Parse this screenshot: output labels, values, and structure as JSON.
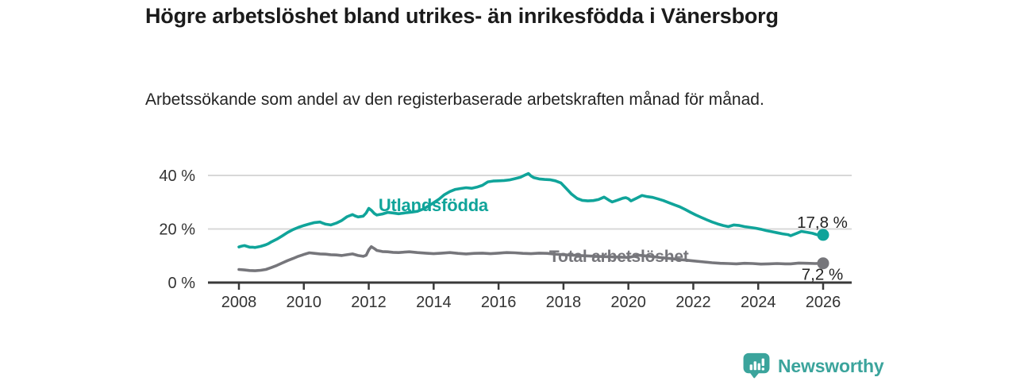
{
  "header": {
    "title": "Högre arbetslöshet bland utrikes- än inrikesfödda i Vänersborg",
    "subtitle": "Arbetssökande som andel av den registerbaserade arbetskraften månad för månad."
  },
  "footer": {
    "brand": "Newsworthy",
    "logo_icon": "bar-chart-speech-bubble-icon"
  },
  "colors": {
    "accent_teal": "#10a49a",
    "neutral_gray": "#76767b",
    "axis": "#3a3a3a",
    "grid": "#d8d8d8",
    "tick_text": "#333333",
    "value_text": "#222222",
    "brand": "#3ba49c"
  },
  "chart_data": {
    "type": "line",
    "title": "Högre arbetslöshet bland utrikes- än inrikesfödda i Vänersborg",
    "subtitle": "Arbetssökande som andel av den registerbaserade arbetskraften månad för månad.",
    "unit": "%",
    "grid": "horizontal",
    "legend_position": "inline-labels",
    "xlim": [
      2007.05,
      2026.9
    ],
    "ylim": [
      0,
      44
    ],
    "x_ticks": [
      {
        "value": 2008,
        "label": "2008"
      },
      {
        "value": 2010,
        "label": "2010"
      },
      {
        "value": 2012,
        "label": "2012"
      },
      {
        "value": 2014,
        "label": "2014"
      },
      {
        "value": 2016,
        "label": "2016"
      },
      {
        "value": 2018,
        "label": "2018"
      },
      {
        "value": 2020,
        "label": "2020"
      },
      {
        "value": 2022,
        "label": "2022"
      },
      {
        "value": 2024,
        "label": "2024"
      },
      {
        "value": 2026,
        "label": "2026"
      }
    ],
    "y_ticks": [
      {
        "value": 0,
        "label": "0 %"
      },
      {
        "value": 20,
        "label": "20 %"
      },
      {
        "value": 40,
        "label": "40 %"
      }
    ],
    "series": [
      {
        "id": "utlandsfodda",
        "name": "Utlandsfödda",
        "color": "#10a49a",
        "end_value_label": "17,8 %",
        "end_value": 17.8,
        "label_pos": {
          "x": 2012.3,
          "y": 26.67
        },
        "points": [
          [
            2008.0,
            13.3
          ],
          [
            2008.08,
            13.6
          ],
          [
            2008.17,
            13.8
          ],
          [
            2008.25,
            13.5
          ],
          [
            2008.33,
            13.2
          ],
          [
            2008.42,
            13.2
          ],
          [
            2008.5,
            13.1
          ],
          [
            2008.58,
            13.3
          ],
          [
            2008.67,
            13.5
          ],
          [
            2008.75,
            13.8
          ],
          [
            2008.83,
            14.1
          ],
          [
            2008.92,
            14.6
          ],
          [
            2009.0,
            15.2
          ],
          [
            2009.17,
            16.2
          ],
          [
            2009.33,
            17.4
          ],
          [
            2009.5,
            18.7
          ],
          [
            2009.67,
            19.8
          ],
          [
            2009.83,
            20.6
          ],
          [
            2010.0,
            21.3
          ],
          [
            2010.17,
            21.9
          ],
          [
            2010.33,
            22.4
          ],
          [
            2010.5,
            22.6
          ],
          [
            2010.58,
            22.2
          ],
          [
            2010.67,
            21.8
          ],
          [
            2010.83,
            21.5
          ],
          [
            2011.0,
            22.2
          ],
          [
            2011.17,
            23.2
          ],
          [
            2011.33,
            24.6
          ],
          [
            2011.5,
            25.4
          ],
          [
            2011.58,
            24.9
          ],
          [
            2011.67,
            24.5
          ],
          [
            2011.83,
            24.8
          ],
          [
            2011.92,
            26.0
          ],
          [
            2012.0,
            27.7
          ],
          [
            2012.08,
            27.0
          ],
          [
            2012.17,
            25.8
          ],
          [
            2012.25,
            25.2
          ],
          [
            2012.42,
            25.6
          ],
          [
            2012.58,
            26.2
          ],
          [
            2012.75,
            26.0
          ],
          [
            2012.92,
            25.7
          ],
          [
            2013.0,
            25.8
          ],
          [
            2013.17,
            26.1
          ],
          [
            2013.33,
            26.3
          ],
          [
            2013.5,
            26.6
          ],
          [
            2013.67,
            27.4
          ],
          [
            2013.83,
            28.5
          ],
          [
            2014.0,
            29.8
          ],
          [
            2014.17,
            31.2
          ],
          [
            2014.33,
            32.8
          ],
          [
            2014.5,
            34.0
          ],
          [
            2014.67,
            34.8
          ],
          [
            2014.83,
            35.1
          ],
          [
            2015.0,
            35.4
          ],
          [
            2015.17,
            35.2
          ],
          [
            2015.33,
            35.6
          ],
          [
            2015.5,
            36.3
          ],
          [
            2015.67,
            37.6
          ],
          [
            2015.83,
            37.9
          ],
          [
            2016.0,
            38.0
          ],
          [
            2016.17,
            38.1
          ],
          [
            2016.33,
            38.3
          ],
          [
            2016.5,
            38.8
          ],
          [
            2016.67,
            39.3
          ],
          [
            2016.83,
            40.2
          ],
          [
            2016.92,
            40.7
          ],
          [
            2017.0,
            39.8
          ],
          [
            2017.08,
            39.2
          ],
          [
            2017.25,
            38.7
          ],
          [
            2017.42,
            38.5
          ],
          [
            2017.58,
            38.4
          ],
          [
            2017.75,
            38.0
          ],
          [
            2017.92,
            37.2
          ],
          [
            2018.08,
            35.2
          ],
          [
            2018.25,
            33.0
          ],
          [
            2018.42,
            31.4
          ],
          [
            2018.58,
            30.7
          ],
          [
            2018.75,
            30.5
          ],
          [
            2018.92,
            30.6
          ],
          [
            2019.08,
            31.0
          ],
          [
            2019.25,
            31.9
          ],
          [
            2019.42,
            30.6
          ],
          [
            2019.5,
            30.1
          ],
          [
            2019.67,
            30.8
          ],
          [
            2019.83,
            31.5
          ],
          [
            2019.92,
            31.7
          ],
          [
            2020.0,
            31.3
          ],
          [
            2020.08,
            30.5
          ],
          [
            2020.25,
            31.5
          ],
          [
            2020.42,
            32.5
          ],
          [
            2020.58,
            32.1
          ],
          [
            2020.75,
            31.8
          ],
          [
            2020.92,
            31.2
          ],
          [
            2021.08,
            30.6
          ],
          [
            2021.25,
            29.8
          ],
          [
            2021.42,
            29.0
          ],
          [
            2021.58,
            28.3
          ],
          [
            2021.75,
            27.3
          ],
          [
            2021.92,
            26.2
          ],
          [
            2022.08,
            25.2
          ],
          [
            2022.25,
            24.3
          ],
          [
            2022.42,
            23.4
          ],
          [
            2022.58,
            22.6
          ],
          [
            2022.75,
            21.9
          ],
          [
            2022.92,
            21.3
          ],
          [
            2023.08,
            20.9
          ],
          [
            2023.25,
            21.5
          ],
          [
            2023.42,
            21.3
          ],
          [
            2023.58,
            20.9
          ],
          [
            2023.75,
            20.6
          ],
          [
            2023.92,
            20.3
          ],
          [
            2024.08,
            19.9
          ],
          [
            2024.25,
            19.4
          ],
          [
            2024.42,
            19.0
          ],
          [
            2024.58,
            18.6
          ],
          [
            2024.75,
            18.2
          ],
          [
            2024.92,
            17.9
          ],
          [
            2025.0,
            17.5
          ],
          [
            2025.17,
            18.3
          ],
          [
            2025.33,
            19.1
          ],
          [
            2025.5,
            18.8
          ],
          [
            2025.67,
            18.4
          ],
          [
            2025.83,
            17.8
          ],
          [
            2025.92,
            17.5
          ],
          [
            2026.0,
            17.8
          ]
        ]
      },
      {
        "id": "total",
        "name": "Total arbetslöshet",
        "color": "#76767b",
        "end_value_label": "7,2 %",
        "end_value": 7.2,
        "label_pos": {
          "x": 2017.56,
          "y": 7.7
        },
        "points": [
          [
            2008.0,
            4.9
          ],
          [
            2008.17,
            4.7
          ],
          [
            2008.33,
            4.5
          ],
          [
            2008.5,
            4.4
          ],
          [
            2008.67,
            4.6
          ],
          [
            2008.83,
            4.9
          ],
          [
            2009.0,
            5.6
          ],
          [
            2009.17,
            6.4
          ],
          [
            2009.33,
            7.3
          ],
          [
            2009.5,
            8.2
          ],
          [
            2009.67,
            9.0
          ],
          [
            2009.83,
            9.8
          ],
          [
            2010.0,
            10.5
          ],
          [
            2010.17,
            11.1
          ],
          [
            2010.33,
            10.9
          ],
          [
            2010.5,
            10.7
          ],
          [
            2010.67,
            10.6
          ],
          [
            2010.83,
            10.4
          ],
          [
            2011.0,
            10.3
          ],
          [
            2011.17,
            10.1
          ],
          [
            2011.33,
            10.4
          ],
          [
            2011.5,
            10.7
          ],
          [
            2011.67,
            10.1
          ],
          [
            2011.83,
            9.8
          ],
          [
            2011.92,
            10.2
          ],
          [
            2012.0,
            12.2
          ],
          [
            2012.08,
            13.4
          ],
          [
            2012.17,
            12.7
          ],
          [
            2012.25,
            12.0
          ],
          [
            2012.42,
            11.6
          ],
          [
            2012.58,
            11.5
          ],
          [
            2012.75,
            11.3
          ],
          [
            2012.92,
            11.2
          ],
          [
            2013.0,
            11.3
          ],
          [
            2013.25,
            11.5
          ],
          [
            2013.5,
            11.2
          ],
          [
            2013.75,
            11.0
          ],
          [
            2014.0,
            10.8
          ],
          [
            2014.25,
            11.0
          ],
          [
            2014.5,
            11.2
          ],
          [
            2014.75,
            10.9
          ],
          [
            2015.0,
            10.7
          ],
          [
            2015.25,
            10.9
          ],
          [
            2015.5,
            11.0
          ],
          [
            2015.75,
            10.8
          ],
          [
            2016.0,
            11.0
          ],
          [
            2016.25,
            11.2
          ],
          [
            2016.5,
            11.1
          ],
          [
            2016.75,
            10.9
          ],
          [
            2017.0,
            10.8
          ],
          [
            2017.25,
            11.0
          ],
          [
            2017.5,
            10.9
          ],
          [
            2017.75,
            10.6
          ],
          [
            2018.0,
            10.4
          ],
          [
            2018.5,
            10.1
          ],
          [
            2019.0,
            9.8
          ],
          [
            2019.5,
            9.6
          ],
          [
            2020.0,
            9.4
          ],
          [
            2020.33,
            10.2
          ],
          [
            2020.67,
            9.8
          ],
          [
            2021.0,
            9.3
          ],
          [
            2021.5,
            8.7
          ],
          [
            2022.0,
            8.1
          ],
          [
            2022.33,
            7.7
          ],
          [
            2022.58,
            7.4
          ],
          [
            2022.83,
            7.2
          ],
          [
            2023.08,
            7.1
          ],
          [
            2023.33,
            7.0
          ],
          [
            2023.58,
            7.2
          ],
          [
            2023.83,
            7.1
          ],
          [
            2024.08,
            6.9
          ],
          [
            2024.33,
            7.0
          ],
          [
            2024.58,
            7.1
          ],
          [
            2024.83,
            7.0
          ],
          [
            2025.0,
            7.0
          ],
          [
            2025.25,
            7.3
          ],
          [
            2025.5,
            7.2
          ],
          [
            2025.75,
            7.1
          ],
          [
            2026.0,
            7.2
          ]
        ]
      }
    ]
  }
}
